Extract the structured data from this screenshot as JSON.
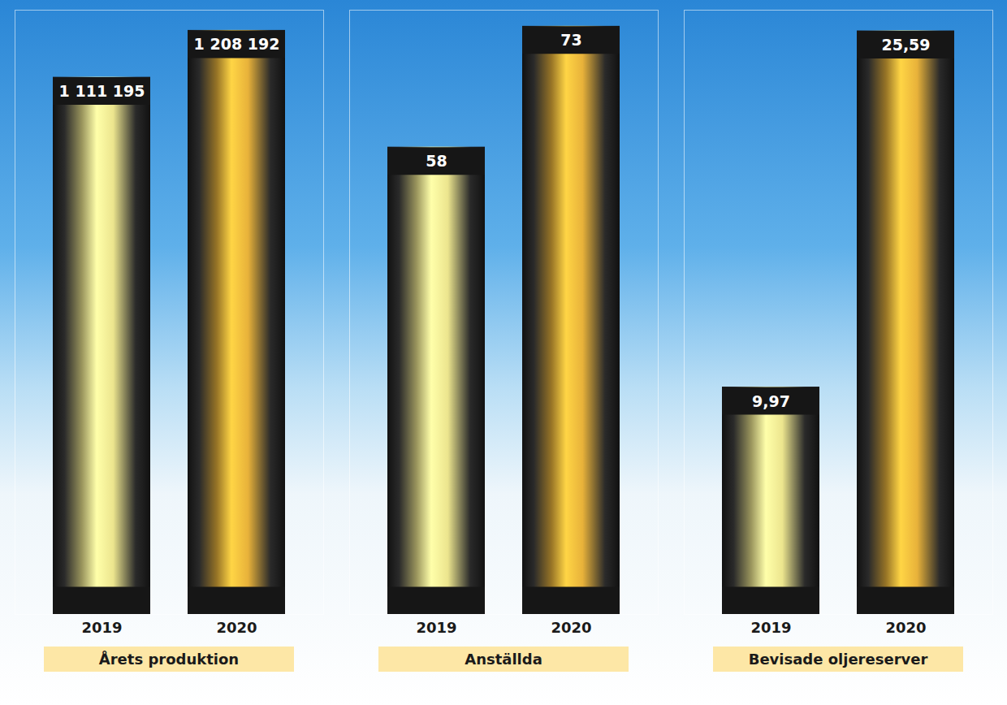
{
  "chart_data": [
    {
      "type": "bar",
      "title": "Årets produktion",
      "categories": [
        "2019",
        "2020"
      ],
      "values": [
        1111195,
        1208192
      ],
      "value_labels": [
        "1 111 195",
        "1 208 192"
      ],
      "colors": [
        "#ece58e",
        "#e8b23a"
      ],
      "ylim": [
        0,
        1250000
      ],
      "data_labels": true,
      "tick_labels": "x"
    },
    {
      "type": "bar",
      "title": "Anställda",
      "categories": [
        "2019",
        "2020"
      ],
      "values": [
        58,
        73
      ],
      "colors": [
        "#ece58e",
        "#e8b23a"
      ],
      "ylim": [
        0,
        75
      ],
      "data_labels": true,
      "tick_labels": "x"
    },
    {
      "type": "bar",
      "title": "Bevisade oljereserver",
      "categories": [
        "2019",
        "2020"
      ],
      "values": [
        9.97,
        25.59
      ],
      "value_labels": [
        "9,97",
        "25,59"
      ],
      "colors": [
        "#ece58e",
        "#e8b23a"
      ],
      "ylim": [
        0,
        26.5
      ],
      "data_labels": true,
      "tick_labels": "x"
    }
  ]
}
